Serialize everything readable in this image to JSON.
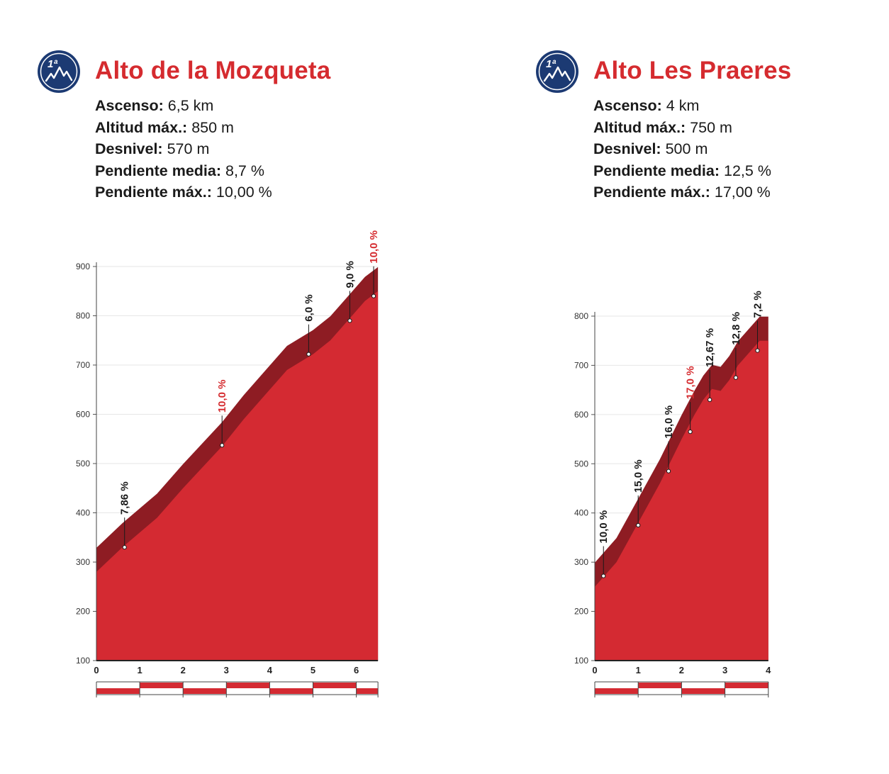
{
  "badge_text": "1ª",
  "colors": {
    "title": "#d52b2f",
    "fill": "#d42a32",
    "band": "#8e1c23",
    "badge": "#1c3a73",
    "label_dark": "#1a1a1a",
    "label_red": "#d52b2f"
  },
  "climbs": [
    {
      "name": "Alto de la Mozqueta",
      "stats": [
        {
          "label": "Ascenso:",
          "value": "6,5 km"
        },
        {
          "label": "Altitud máx.:",
          "value": "850 m"
        },
        {
          "label": "Desnivel:",
          "value": "570 m"
        },
        {
          "label": "Pendiente media:",
          "value": "8,7 %"
        },
        {
          "label": "Pendiente máx.:",
          "value": "10,00 %"
        }
      ],
      "chart_data": {
        "type": "area",
        "x_ticks": [
          "0",
          "1",
          "2",
          "3",
          "4",
          "5",
          "6"
        ],
        "y_ticks": [
          "100",
          "200",
          "300",
          "400",
          "500",
          "600",
          "700",
          "800",
          "900"
        ],
        "xlim": [
          0,
          6.5
        ],
        "ylim": [
          100,
          900
        ],
        "profile": [
          [
            0,
            280
          ],
          [
            0.6,
            330
          ],
          [
            1.4,
            390
          ],
          [
            2,
            450
          ],
          [
            2.9,
            535
          ],
          [
            3.4,
            590
          ],
          [
            4,
            650
          ],
          [
            4.4,
            690
          ],
          [
            5,
            722
          ],
          [
            5.4,
            750
          ],
          [
            5.8,
            790
          ],
          [
            6.2,
            830
          ],
          [
            6.5,
            850
          ]
        ],
        "annotations": [
          {
            "x": 0.65,
            "y": 330,
            "label": "7,86 %",
            "color": "dark"
          },
          {
            "x": 2.9,
            "y": 537,
            "label": "10,0 %",
            "color": "red"
          },
          {
            "x": 4.9,
            "y": 722,
            "label": "6,0 %",
            "color": "dark"
          },
          {
            "x": 5.85,
            "y": 790,
            "label": "9,0 %",
            "color": "dark"
          },
          {
            "x": 6.4,
            "y": 840,
            "label": "10,0 %",
            "color": "red"
          }
        ]
      }
    },
    {
      "name": "Alto Les Praeres",
      "stats": [
        {
          "label": "Ascenso:",
          "value": "4 km"
        },
        {
          "label": "Altitud máx.:",
          "value": "750 m"
        },
        {
          "label": "Desnivel:",
          "value": "500 m"
        },
        {
          "label": "Pendiente media:",
          "value": "12,5 %"
        },
        {
          "label": "Pendiente máx.:",
          "value": "17,00 %"
        }
      ],
      "chart_data": {
        "type": "area",
        "x_ticks": [
          "0",
          "1",
          "2",
          "3",
          "4"
        ],
        "y_ticks": [
          "100",
          "200",
          "300",
          "400",
          "500",
          "600",
          "700",
          "800"
        ],
        "xlim": [
          0,
          4
        ],
        "ylim": [
          100,
          800
        ],
        "profile": [
          [
            0,
            250
          ],
          [
            0.5,
            300
          ],
          [
            1,
            380
          ],
          [
            1.5,
            460
          ],
          [
            2,
            550
          ],
          [
            2.3,
            600
          ],
          [
            2.5,
            630
          ],
          [
            2.7,
            652
          ],
          [
            2.9,
            648
          ],
          [
            3.1,
            670
          ],
          [
            3.3,
            700
          ],
          [
            3.6,
            730
          ],
          [
            3.8,
            750
          ],
          [
            4,
            750
          ]
        ],
        "annotations": [
          {
            "x": 0.2,
            "y": 272,
            "label": "10,0 %",
            "color": "dark"
          },
          {
            "x": 1.0,
            "y": 375,
            "label": "15,0 %",
            "color": "dark"
          },
          {
            "x": 1.7,
            "y": 485,
            "label": "16,0 %",
            "color": "dark"
          },
          {
            "x": 2.2,
            "y": 565,
            "label": "17,0 %",
            "color": "red"
          },
          {
            "x": 2.65,
            "y": 630,
            "label": "12,67 %",
            "color": "dark"
          },
          {
            "x": 3.25,
            "y": 675,
            "label": "12,8 %",
            "color": "dark"
          },
          {
            "x": 3.75,
            "y": 730,
            "label": "7,2 %",
            "color": "dark"
          }
        ]
      }
    }
  ]
}
